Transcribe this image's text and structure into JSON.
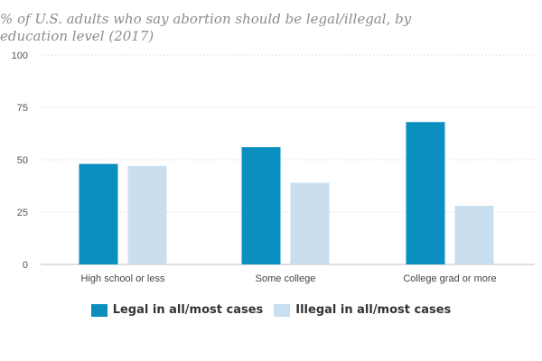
{
  "chart_data": {
    "type": "bar",
    "title": "% of U.S. adults who say abortion should be legal/illegal, by education level (2017)",
    "categories": [
      "High school or less",
      "Some college",
      "College grad or more"
    ],
    "series": [
      {
        "name": "Legal in all/most cases",
        "values": [
          48,
          56,
          68
        ],
        "color": "#0b8fc0"
      },
      {
        "name": "Illegal in all/most cases",
        "values": [
          47,
          39,
          28
        ],
        "color": "#c9dff0"
      }
    ],
    "ylim": [
      0,
      100
    ],
    "yticks": [
      0,
      25,
      50,
      75,
      100
    ],
    "grid": true,
    "legend_position": "bottom-center"
  }
}
